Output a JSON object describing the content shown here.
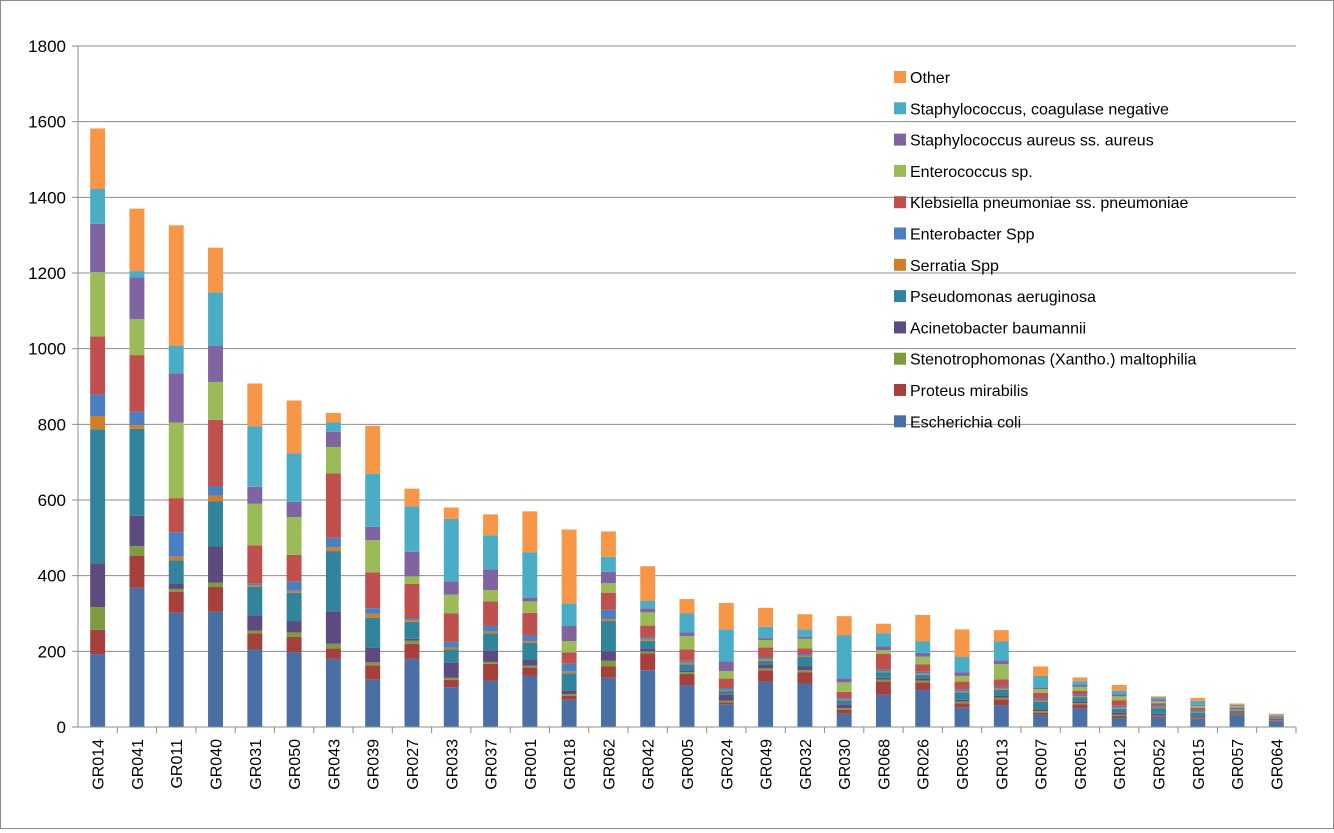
{
  "chart_data": {
    "type": "bar",
    "stacked": true,
    "title": "",
    "xlabel": "",
    "ylabel": "",
    "ylim": [
      0,
      1800
    ],
    "yticks": [
      0,
      200,
      400,
      600,
      800,
      1000,
      1200,
      1400,
      1600,
      1800
    ],
    "grid": true,
    "legend_position": "top-right",
    "categories": [
      "GR014",
      "GR041",
      "GR011",
      "GR040",
      "GR031",
      "GR050",
      "GR043",
      "GR039",
      "GR027",
      "GR033",
      "GR037",
      "GR001",
      "GR018",
      "GR062",
      "GR042",
      "GR005",
      "GR024",
      "GR049",
      "GR032",
      "GR030",
      "GR068",
      "GR026",
      "GR055",
      "GR013",
      "GR007",
      "GR051",
      "GR012",
      "GR052",
      "GR015",
      "GR057",
      "GR064"
    ],
    "series": [
      {
        "name": "Escherichia coli",
        "color": "#4A6FA5",
        "values": [
          192,
          368,
          302,
          305,
          205,
          198,
          180,
          125,
          180,
          105,
          122,
          135,
          72,
          130,
          150,
          110,
          60,
          120,
          115,
          35,
          85,
          98,
          52,
          58,
          32,
          50,
          25,
          25,
          20,
          30,
          15
        ]
      },
      {
        "name": "Proteus mirabilis",
        "color": "#A5403D",
        "values": [
          65,
          85,
          55,
          65,
          42,
          40,
          28,
          38,
          40,
          20,
          45,
          22,
          10,
          30,
          45,
          30,
          5,
          30,
          30,
          10,
          35,
          20,
          10,
          15,
          5,
          10,
          5,
          3,
          3,
          3,
          2
        ]
      },
      {
        "name": "Stenotrophomonas (Xantho.) maltophilia",
        "color": "#7D9B3F",
        "values": [
          60,
          25,
          8,
          12,
          8,
          12,
          12,
          8,
          8,
          5,
          5,
          5,
          5,
          15,
          5,
          5,
          5,
          5,
          5,
          5,
          5,
          5,
          5,
          5,
          5,
          3,
          3,
          2,
          2,
          2,
          1
        ]
      },
      {
        "name": "Acinetobacter baumannii",
        "color": "#5D4A7E",
        "values": [
          115,
          80,
          15,
          95,
          40,
          30,
          85,
          38,
          5,
          40,
          30,
          15,
          10,
          25,
          8,
          5,
          15,
          10,
          10,
          10,
          5,
          5,
          5,
          5,
          5,
          5,
          5,
          5,
          3,
          3,
          2
        ]
      },
      {
        "name": "Pseudomonas aeruginosa",
        "color": "#31849B",
        "values": [
          355,
          230,
          60,
          120,
          75,
          75,
          160,
          80,
          45,
          35,
          45,
          45,
          45,
          80,
          20,
          15,
          10,
          10,
          25,
          10,
          15,
          10,
          20,
          15,
          20,
          10,
          10,
          15,
          10,
          5,
          3
        ]
      },
      {
        "name": "Serratia Spp",
        "color": "#D07E2A",
        "values": [
          35,
          10,
          10,
          15,
          5,
          5,
          10,
          10,
          5,
          5,
          5,
          5,
          5,
          5,
          5,
          5,
          3,
          5,
          3,
          3,
          3,
          3,
          3,
          3,
          3,
          3,
          3,
          3,
          3,
          3,
          2
        ]
      },
      {
        "name": "Enterobacter Spp",
        "color": "#4A7FC1",
        "values": [
          57,
          35,
          65,
          25,
          5,
          25,
          25,
          15,
          5,
          15,
          15,
          15,
          20,
          25,
          5,
          5,
          5,
          5,
          5,
          5,
          5,
          5,
          5,
          5,
          5,
          5,
          5,
          5,
          5,
          3,
          2
        ]
      },
      {
        "name": "Klebsiella pneumoniae ss. pneumoniae",
        "color": "#C0504D",
        "values": [
          153,
          150,
          90,
          175,
          100,
          70,
          170,
          95,
          90,
          75,
          65,
          60,
          30,
          45,
          30,
          30,
          25,
          25,
          15,
          15,
          40,
          20,
          20,
          20,
          15,
          10,
          15,
          5,
          5,
          3,
          2
        ]
      },
      {
        "name": "Enterococcus sp.",
        "color": "#9BBB59",
        "values": [
          170,
          95,
          200,
          100,
          110,
          100,
          70,
          85,
          20,
          50,
          30,
          30,
          30,
          25,
          35,
          35,
          20,
          20,
          25,
          25,
          10,
          20,
          15,
          40,
          10,
          10,
          10,
          5,
          5,
          3,
          2
        ]
      },
      {
        "name": "Staphylococcus aureus ss. aureus",
        "color": "#8064A2",
        "values": [
          128,
          110,
          130,
          95,
          45,
          40,
          40,
          35,
          65,
          35,
          55,
          10,
          40,
          30,
          10,
          10,
          25,
          5,
          5,
          10,
          10,
          10,
          10,
          10,
          5,
          5,
          5,
          5,
          3,
          2,
          1
        ]
      },
      {
        "name": "Staphylococcus, coagulase negative",
        "color": "#4BACC6",
        "values": [
          92,
          17,
          73,
          142,
          160,
          128,
          25,
          140,
          120,
          165,
          90,
          120,
          60,
          40,
          20,
          50,
          85,
          30,
          20,
          115,
          35,
          30,
          40,
          50,
          30,
          10,
          10,
          5,
          10,
          2,
          1
        ]
      },
      {
        "name": "Other",
        "color": "#F79646",
        "values": [
          160,
          165,
          318,
          118,
          113,
          140,
          25,
          127,
          47,
          30,
          55,
          108,
          195,
          67,
          92,
          38,
          70,
          50,
          40,
          50,
          25,
          70,
          73,
          30,
          25,
          10,
          15,
          3,
          8,
          3,
          2
        ]
      }
    ]
  }
}
